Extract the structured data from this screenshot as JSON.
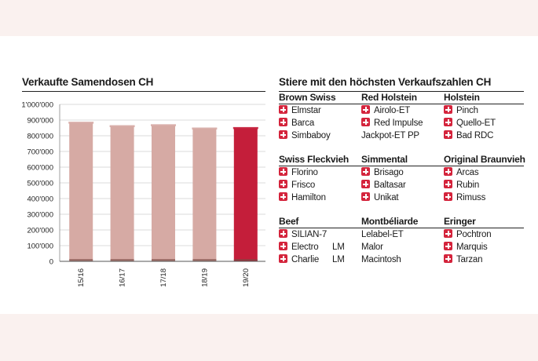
{
  "chart_data": {
    "type": "bar",
    "title": "Verkaufte Samendosen CH",
    "categories": [
      "15/16",
      "16/17",
      "17/18",
      "18/19",
      "19/20"
    ],
    "values": [
      882000,
      860000,
      866000,
      845000,
      848000
    ],
    "ylim": [
      0,
      1000000
    ],
    "yticks": [
      "0",
      "100'000",
      "200'000",
      "300'000",
      "400'000",
      "500'000",
      "600'000",
      "700'000",
      "800'000",
      "900'000",
      "1'000'000"
    ],
    "grid": true,
    "colors": {
      "default": "#d6aaa4",
      "highlight": "#c41e3a"
    },
    "highlight_index": 4
  },
  "table": {
    "title": "Stiere mit den höchsten Verkaufszahlen CH",
    "groups": [
      {
        "label": "Brown Swiss",
        "rows": [
          {
            "name": "Elmstar",
            "flag": true
          },
          {
            "name": "Barca",
            "flag": true
          },
          {
            "name": "Simbaboy",
            "flag": true
          }
        ]
      },
      {
        "label": "Red Holstein",
        "rows": [
          {
            "name": "Airolo-ET",
            "flag": true
          },
          {
            "name": "Red Impulse",
            "flag": true
          },
          {
            "name": "Jackpot-ET PP",
            "flag": false
          }
        ]
      },
      {
        "label": "Holstein",
        "rows": [
          {
            "name": "Pinch",
            "flag": true
          },
          {
            "name": "Quello-ET",
            "flag": true
          },
          {
            "name": "Bad RDC",
            "flag": true
          }
        ]
      },
      {
        "label": "Swiss Fleckvieh",
        "rows": [
          {
            "name": "Florino",
            "flag": true
          },
          {
            "name": "Frisco",
            "flag": true
          },
          {
            "name": "Hamilton",
            "flag": true
          }
        ]
      },
      {
        "label": "Simmental",
        "rows": [
          {
            "name": "Brisago",
            "flag": true
          },
          {
            "name": "Baltasar",
            "flag": true
          },
          {
            "name": "Unikat",
            "flag": true
          }
        ]
      },
      {
        "label": "Original Braunvieh",
        "rows": [
          {
            "name": "Arcas",
            "flag": true
          },
          {
            "name": "Rubin",
            "flag": true
          },
          {
            "name": "Rimuss",
            "flag": true
          }
        ]
      },
      {
        "label": "Beef",
        "rows": [
          {
            "name": "SILIAN-7",
            "flag": true
          },
          {
            "name": "Electro",
            "flag": true,
            "suffix": "LM"
          },
          {
            "name": "Charlie",
            "flag": true,
            "suffix": "LM"
          }
        ]
      },
      {
        "label": "Montbéliarde",
        "rows": [
          {
            "name": "Lelabel-ET",
            "flag": false
          },
          {
            "name": "Malor",
            "flag": false
          },
          {
            "name": "Macintosh",
            "flag": false
          }
        ]
      },
      {
        "label": "Eringer",
        "rows": [
          {
            "name": "Pochtron",
            "flag": true
          },
          {
            "name": "Marquis",
            "flag": true
          },
          {
            "name": "Tarzan",
            "flag": true
          }
        ]
      }
    ]
  }
}
